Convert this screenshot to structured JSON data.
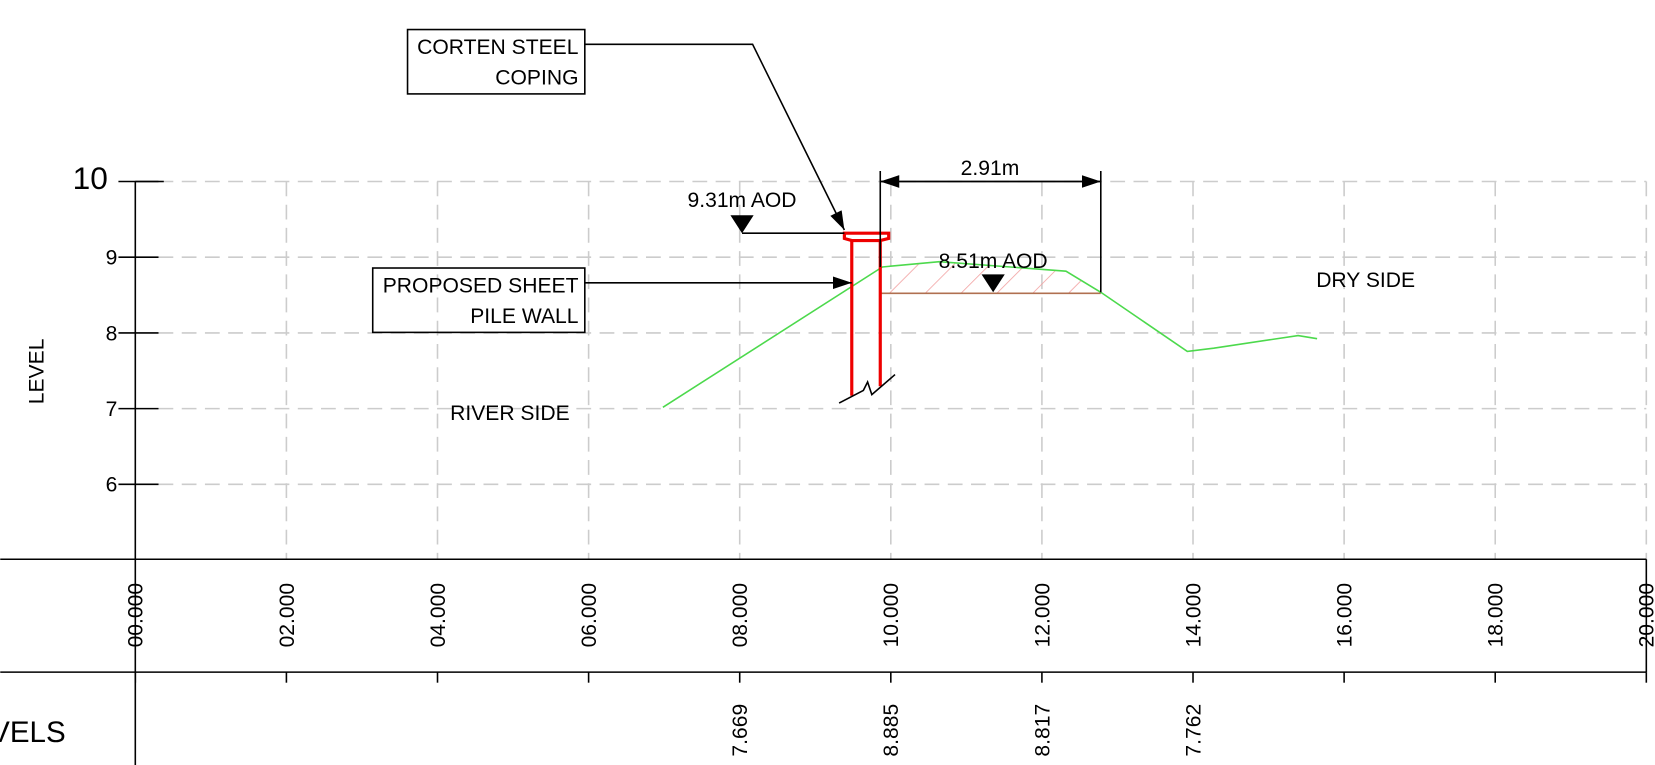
{
  "callouts": {
    "coping": [
      "CORTEN STEEL",
      "COPING"
    ],
    "sheet_pile": [
      "PROPOSED SHEET",
      "PILE WALL"
    ]
  },
  "levels": {
    "top": "9.31m AOD",
    "bank": "8.51m AOD"
  },
  "dimension": "2.91m",
  "sides": {
    "dry": "DRY SIDE",
    "river": "RIVER SIDE"
  },
  "axis": {
    "title": "LEVEL",
    "ticks": [
      "10",
      "9",
      "8",
      "7",
      "6"
    ]
  },
  "chainage": [
    "00.000",
    "02.000",
    "04.000",
    "06.000",
    "08.000",
    "10.000",
    "12.000",
    "14.000",
    "16.000",
    "18.000",
    "20.000"
  ],
  "levels_row": {
    "title": "VELS",
    "values": [
      "7.669",
      "8.885",
      "8.817",
      "7.762"
    ]
  }
}
